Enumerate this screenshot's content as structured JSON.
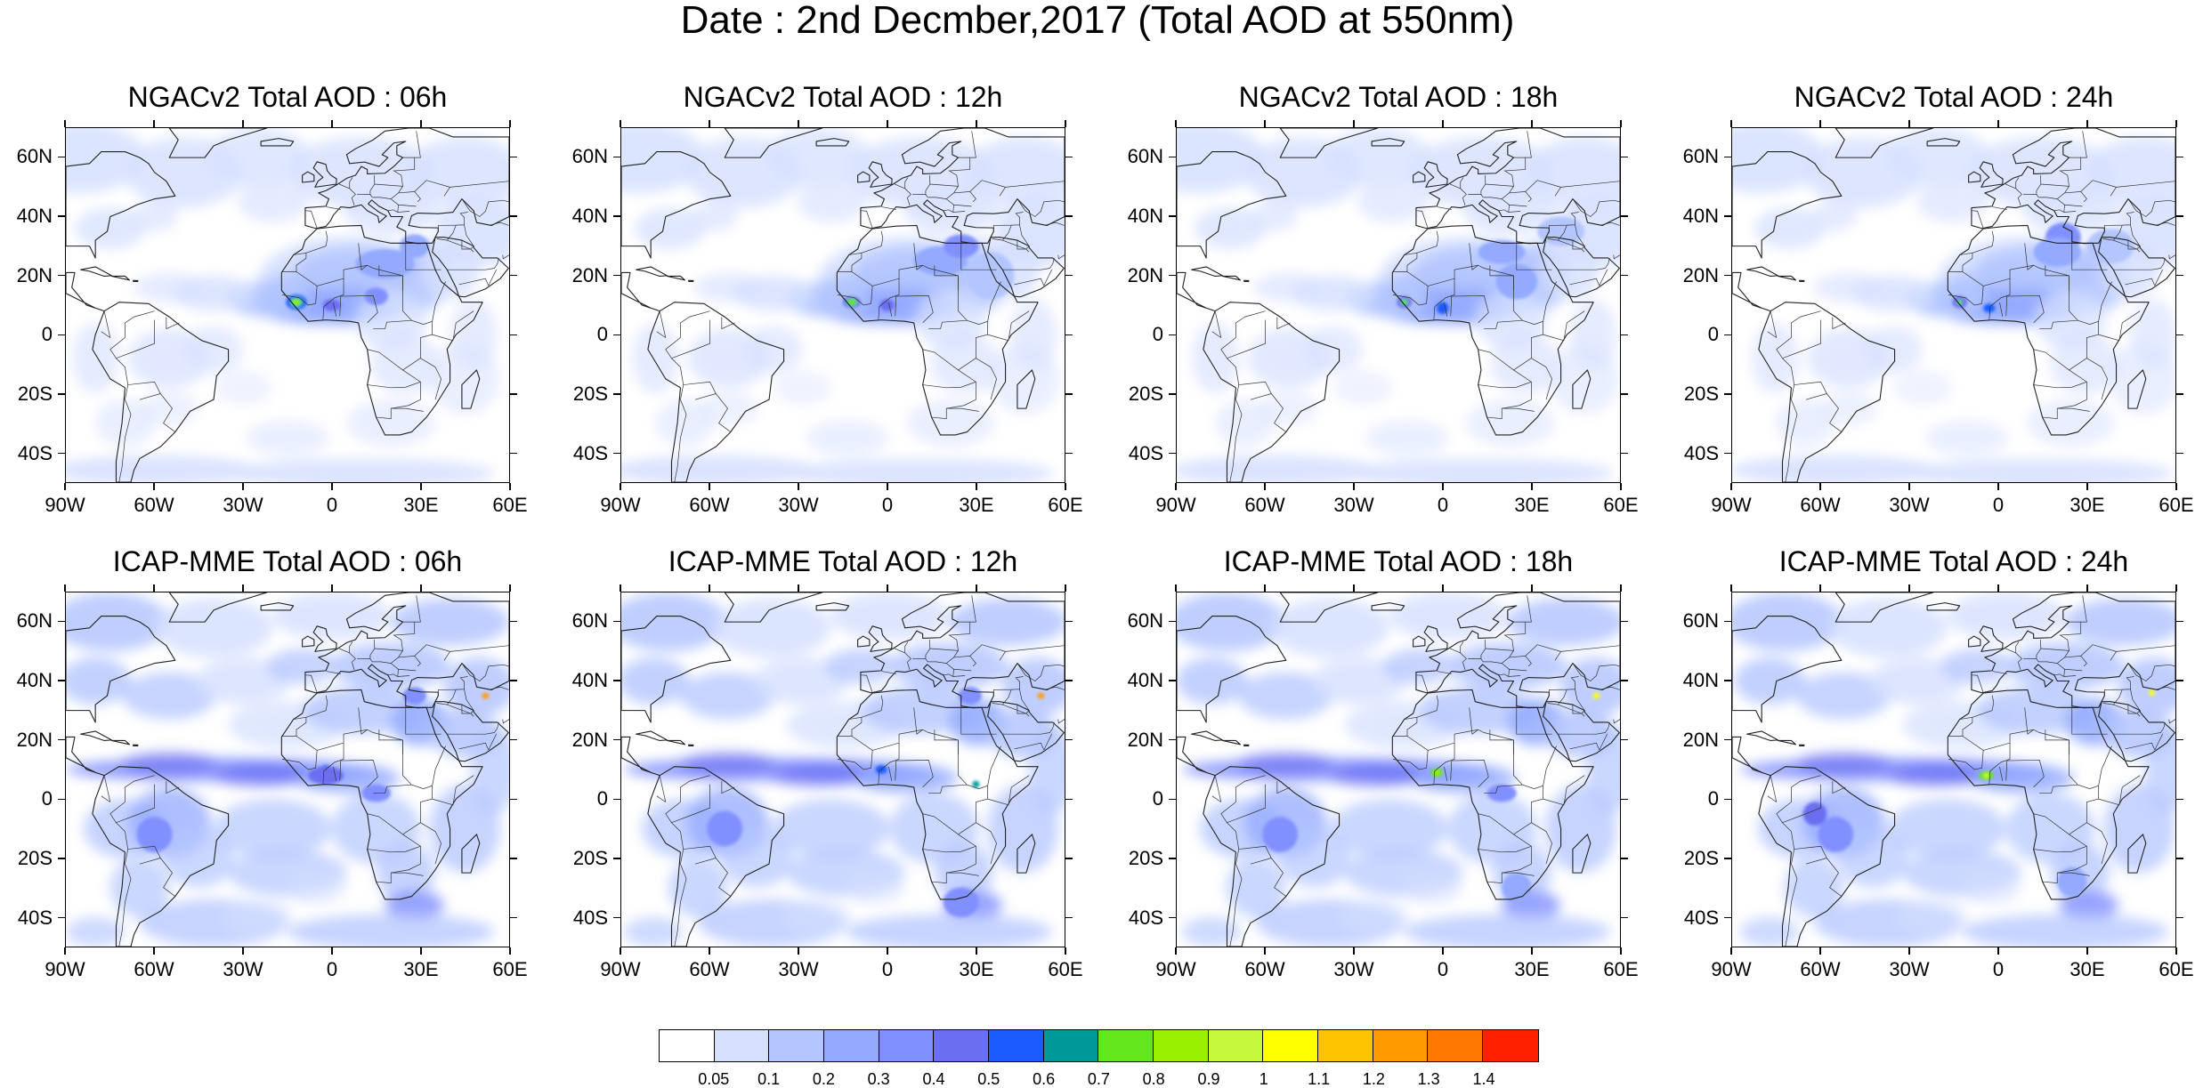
{
  "title": "Date : 2nd Decmber,2017 (Total AOD at 550nm)",
  "panels": [
    {
      "title": "NGACv2 Total AOD : 06h",
      "model": "NGACv2",
      "hour": "06h"
    },
    {
      "title": "NGACv2 Total AOD : 12h",
      "model": "NGACv2",
      "hour": "12h"
    },
    {
      "title": "NGACv2 Total AOD : 18h",
      "model": "NGACv2",
      "hour": "18h"
    },
    {
      "title": "NGACv2 Total AOD : 24h",
      "model": "NGACv2",
      "hour": "24h"
    },
    {
      "title": "ICAP-MME Total AOD : 06h",
      "model": "ICAP-MME",
      "hour": "06h"
    },
    {
      "title": "ICAP-MME Total AOD : 12h",
      "model": "ICAP-MME",
      "hour": "12h"
    },
    {
      "title": "ICAP-MME Total AOD : 18h",
      "model": "ICAP-MME",
      "hour": "18h"
    },
    {
      "title": "ICAP-MME Total AOD : 24h",
      "model": "ICAP-MME",
      "hour": "24h"
    }
  ],
  "map_extent": {
    "lon": [
      -90,
      60
    ],
    "lat": [
      -50,
      70
    ]
  },
  "lat_ticks": [
    "60N",
    "40N",
    "20N",
    "0",
    "20S",
    "40S"
  ],
  "lon_ticks": [
    "90W",
    "60W",
    "30W",
    "0",
    "30E",
    "60E"
  ],
  "colorbar": {
    "levels": [
      "0.05",
      "0.1",
      "0.2",
      "0.3",
      "0.4",
      "0.5",
      "0.6",
      "0.7",
      "0.8",
      "0.9",
      "1",
      "1.1",
      "1.2",
      "1.3",
      "1.4"
    ],
    "colors": [
      "#ffffff",
      "#d6e0ff",
      "#b4c6ff",
      "#93aaff",
      "#8190ff",
      "#6a6ef0",
      "#1c5cff",
      "#00999a",
      "#63e61b",
      "#99f000",
      "#c6f83c",
      "#ffff00",
      "#ffc400",
      "#ff9a00",
      "#ff7800",
      "#ff2000"
    ]
  }
}
